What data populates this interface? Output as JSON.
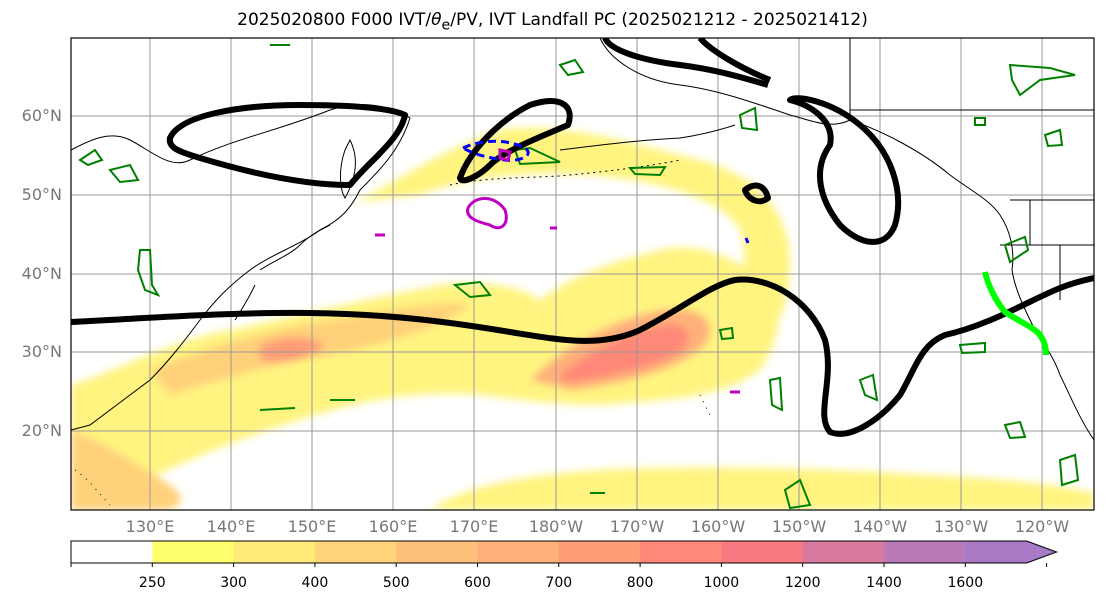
{
  "title_prefix": "2025020800 F000 IVT/",
  "title_theta": "θ",
  "title_sub": "e",
  "title_suffix": "/PV, IVT Landfall PC (2025021212 - 2025021412)",
  "lat_labels": [
    "60°N",
    "50°N",
    "40°N",
    "30°N",
    "20°N"
  ],
  "lon_labels": [
    "130°E",
    "140°E",
    "150°E",
    "160°E",
    "170°E",
    "180°W",
    "170°W",
    "160°W",
    "150°W",
    "140°W",
    "130°W",
    "120°W"
  ],
  "colorbar": {
    "levels": [
      "250",
      "300",
      "400",
      "500",
      "600",
      "700",
      "800",
      "1000",
      "1200",
      "1400",
      "1600"
    ],
    "colors": [
      "#ffffff",
      "#ffff6e",
      "#ffea78",
      "#ffd47a",
      "#ffc07a",
      "#ffb07a",
      "#ff9c78",
      "#ff8878",
      "#f67a80",
      "#d87aa0",
      "#b87ab8",
      "#a87ac6"
    ]
  },
  "colors": {
    "pv_contour": "#000000",
    "theta_contour": "#008000",
    "landfall_track": "#00ff00",
    "negative_contour": "#0000ff",
    "magenta_contour": "#c000c0",
    "grid": "#999999"
  }
}
